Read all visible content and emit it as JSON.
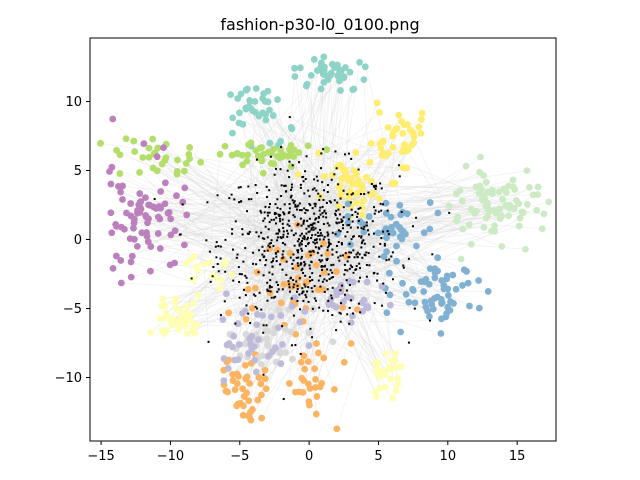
{
  "chart_data": {
    "type": "scatter",
    "title": "fashion-p30-l0_0100.png",
    "xlabel": "",
    "ylabel": "",
    "xlim": [
      -15.8,
      17.8
    ],
    "ylim": [
      -14.6,
      14.6
    ],
    "x_ticks": [
      -15,
      -10,
      -5,
      0,
      5,
      10,
      15
    ],
    "y_ticks": [
      -10,
      -5,
      0,
      5,
      10
    ],
    "grid": false,
    "legend": "none",
    "has_connecting_lines": true,
    "line_color": "#d9d9d9",
    "colors": {
      "projected": "#000000",
      "c0": "#8dd3c7",
      "c1": "#ffffb3",
      "c2": "#bebada",
      "c3": "#fb8072",
      "c4": "#80b1d3",
      "c5": "#fdb462",
      "c6": "#b3de69",
      "c7": "#fccde5",
      "c8": "#d9d9d9",
      "c9": "#bc80bd",
      "c10": "#ccebc5",
      "c11": "#ffed6f"
    },
    "clusters": [
      {
        "color_key": "c0",
        "center": [
          -3.8,
          9.6
        ],
        "spread": [
          1.2,
          1.0
        ],
        "count": 40
      },
      {
        "color_key": "c0",
        "center": [
          1.5,
          12.0
        ],
        "spread": [
          1.4,
          0.6
        ],
        "count": 40
      },
      {
        "color_key": "c6",
        "center": [
          -11.0,
          6.0
        ],
        "spread": [
          1.8,
          0.8
        ],
        "count": 30
      },
      {
        "color_key": "c6",
        "center": [
          -3.0,
          6.1
        ],
        "spread": [
          2.0,
          0.4
        ],
        "count": 40
      },
      {
        "color_key": "c9",
        "center": [
          -12.0,
          1.7
        ],
        "spread": [
          1.4,
          2.0
        ],
        "count": 80
      },
      {
        "color_key": "c11",
        "center": [
          6.5,
          7.2
        ],
        "spread": [
          1.0,
          1.2
        ],
        "count": 40
      },
      {
        "color_key": "c11",
        "center": [
          3.2,
          3.8
        ],
        "spread": [
          1.2,
          1.0
        ],
        "count": 50
      },
      {
        "color_key": "c10",
        "center": [
          13.5,
          2.4
        ],
        "spread": [
          2.0,
          1.3
        ],
        "count": 80
      },
      {
        "color_key": "c4",
        "center": [
          9.6,
          -3.6
        ],
        "spread": [
          1.6,
          1.3
        ],
        "count": 60
      },
      {
        "color_key": "c4",
        "center": [
          6.0,
          1.0
        ],
        "spread": [
          1.5,
          1.0
        ],
        "count": 40
      },
      {
        "color_key": "c1",
        "center": [
          -9.5,
          -5.6
        ],
        "spread": [
          0.8,
          0.8
        ],
        "count": 40
      },
      {
        "color_key": "c1",
        "center": [
          5.5,
          -9.8
        ],
        "spread": [
          0.6,
          1.0
        ],
        "count": 25
      },
      {
        "color_key": "c1",
        "center": [
          -7.0,
          -2.2
        ],
        "spread": [
          1.0,
          0.5
        ],
        "count": 15
      },
      {
        "color_key": "c5",
        "center": [
          -4.5,
          -11.0
        ],
        "spread": [
          0.9,
          1.2
        ],
        "count": 40
      },
      {
        "color_key": "c5",
        "center": [
          0.0,
          -10.5
        ],
        "spread": [
          1.2,
          1.5
        ],
        "count": 30
      },
      {
        "color_key": "c5",
        "center": [
          -1.0,
          -3.0
        ],
        "spread": [
          1.6,
          2.0
        ],
        "count": 40
      },
      {
        "color_key": "c8",
        "center": [
          -3.0,
          -7.5
        ],
        "spread": [
          1.5,
          1.4
        ],
        "count": 40
      },
      {
        "color_key": "c2",
        "center": [
          -3.6,
          -7.0
        ],
        "spread": [
          1.6,
          1.6
        ],
        "count": 40
      },
      {
        "color_key": "c2",
        "center": [
          3.5,
          -4.5
        ],
        "spread": [
          1.2,
          0.8
        ],
        "count": 25
      }
    ],
    "projected_points": {
      "color_key": "projected",
      "center": [
        0.0,
        -0.3
      ],
      "spread": [
        3.2,
        2.8
      ],
      "count": 700
    }
  }
}
